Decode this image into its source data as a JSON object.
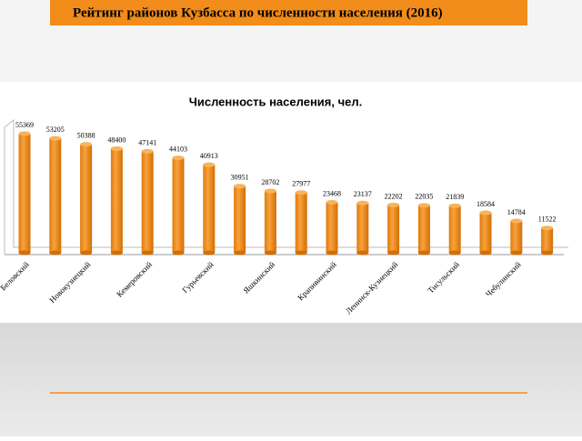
{
  "header": {
    "title": "Рейтинг районов Кузбасса по численности населения (2016)"
  },
  "chart_data": {
    "type": "bar",
    "title": "Численность населения, чел.",
    "categories": [
      "Беловский",
      null,
      "Новокузнецкий",
      null,
      "Кемеровский",
      null,
      "Гурьевский",
      null,
      "Яшкинский",
      null,
      "Крапивинский",
      null,
      "Ленинск-Кузнецкий",
      null,
      "Тисульский",
      null,
      "Чебулинский",
      null
    ],
    "values": [
      55369,
      53205,
      50388,
      48400,
      47141,
      44103,
      40913,
      30951,
      28702,
      27977,
      23468,
      23137,
      22202,
      22035,
      21839,
      18584,
      14784,
      11522
    ],
    "color": "#f28c1a",
    "ylim": [
      0,
      60000
    ]
  }
}
